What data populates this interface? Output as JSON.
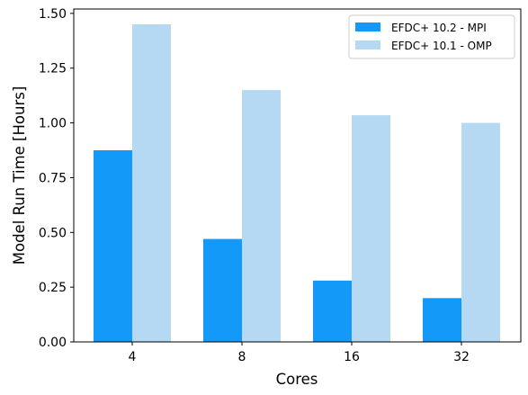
{
  "chart_data": {
    "type": "bar",
    "title": "",
    "xlabel": "Cores",
    "ylabel": "Model Run Time [Hours]",
    "categories": [
      "4",
      "8",
      "16",
      "32"
    ],
    "series": [
      {
        "name": "EFDC+ 10.2 - MPI",
        "values": [
          0.875,
          0.47,
          0.28,
          0.2
        ],
        "color": "#1399f7"
      },
      {
        "name": "EFDC+ 10.1 - OMP",
        "values": [
          1.45,
          1.15,
          1.035,
          1.0
        ],
        "color": "#b5d9f3"
      }
    ],
    "ylim": [
      0,
      1.52
    ],
    "yticks": [
      "0.00",
      "0.25",
      "0.50",
      "0.75",
      "1.00",
      "1.25",
      "1.50"
    ],
    "grid": false,
    "legend_position": "top-right"
  }
}
